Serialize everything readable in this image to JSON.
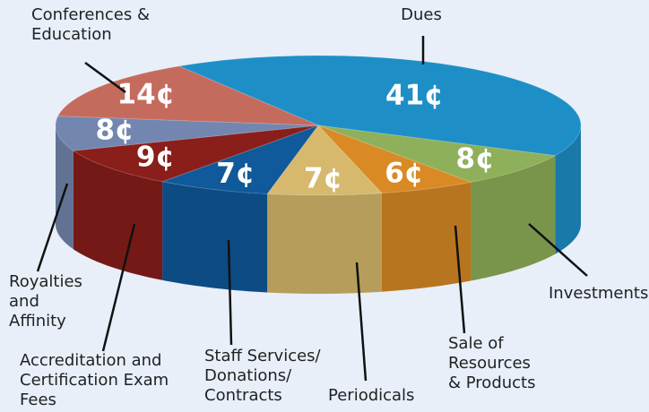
{
  "chart_data": {
    "type": "pie",
    "categories": [
      "Dues",
      "Investments",
      "Sale of\nResources\n& Products",
      "Periodicals",
      "Staff Services/\nDonations/\nContracts",
      "Accreditation and\nCertification Exam\nFees",
      "Royalties\nand\nAffinity",
      "Conferences &\nEducation"
    ],
    "values": [
      41,
      8,
      6,
      7,
      7,
      9,
      8,
      14
    ],
    "value_labels": [
      "41¢",
      "8¢",
      "6¢",
      "7¢",
      "7¢",
      "9¢",
      "8¢",
      "14¢"
    ],
    "colors": [
      "#1e8fc6",
      "#8fb05a",
      "#d98a25",
      "#d6b96c",
      "#10599a",
      "#8a1e1a",
      "#7286b0",
      "#c56b5e"
    ]
  }
}
